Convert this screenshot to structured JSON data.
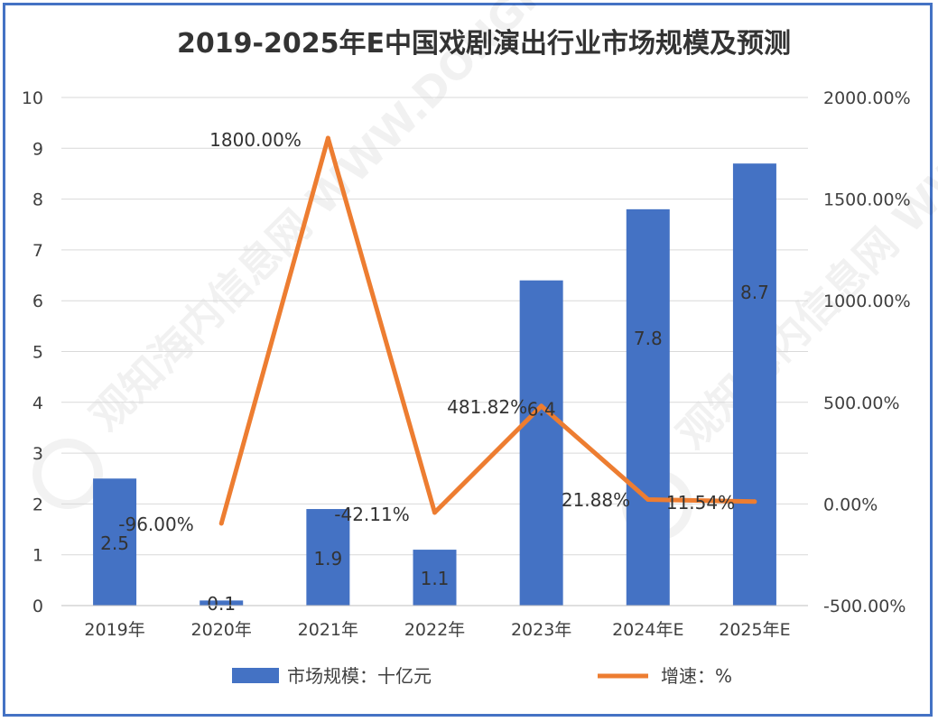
{
  "chart_data": {
    "type": "bar",
    "title": "2019-2025年E中国戏剧演出行业市场规模及预测",
    "categories": [
      "2019年",
      "2020年",
      "2021年",
      "2022年",
      "2023年",
      "2024年E",
      "2025年E"
    ],
    "series": [
      {
        "name": "市场规模：十亿元",
        "type": "bar",
        "axis": "left",
        "values": [
          2.5,
          0.1,
          1.9,
          1.1,
          6.4,
          7.8,
          8.7
        ],
        "labels": [
          "2.5",
          "0.1",
          "1.9",
          "1.1",
          "6.4",
          "7.8",
          "8.7"
        ],
        "color": "#4472c4"
      },
      {
        "name": "增速：%",
        "type": "line",
        "axis": "right",
        "values": [
          null,
          -96.0,
          1800.0,
          -42.11,
          481.82,
          21.88,
          11.54
        ],
        "labels": [
          "",
          "-96.00%",
          "1800.00%",
          "-42.11%",
          "481.82%",
          "21.88%",
          "11.54%"
        ],
        "color": "#ed7d31"
      }
    ],
    "left_axis": {
      "min": 0,
      "max": 10,
      "step": 1,
      "ticks": [
        "0",
        "1",
        "2",
        "3",
        "4",
        "5",
        "6",
        "7",
        "8",
        "9",
        "10"
      ]
    },
    "right_axis": {
      "min": -500,
      "max": 2000,
      "step": 500,
      "ticks": [
        "-500.00%",
        "0.00%",
        "500.00%",
        "1000.00%",
        "1500.00%",
        "2000.00%"
      ]
    },
    "grid": true,
    "legend_position": "bottom",
    "watermark": "观知海内信息网 WWW.DONGFANGQB.COM"
  }
}
